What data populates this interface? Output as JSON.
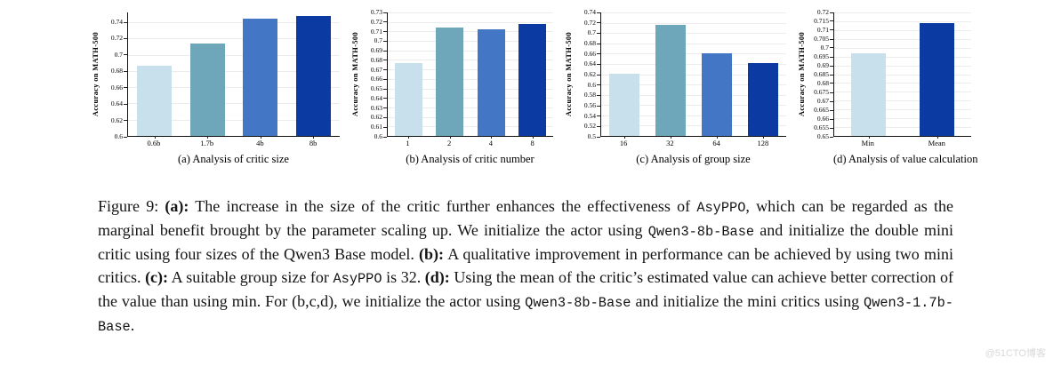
{
  "watermark": {
    "text": "@51CTO博客"
  },
  "figure": {
    "caption_segments": [
      {
        "text": "Figure 9: ",
        "style": "n"
      },
      {
        "text": "(a):",
        "style": "b"
      },
      {
        "text": " The increase in the size of the critic further enhances the effectiveness of ",
        "style": "n"
      },
      {
        "text": "AsyPPO",
        "style": "c"
      },
      {
        "text": ", which can be regarded as the marginal benefit brought by the parameter scaling up. We initialize the actor using ",
        "style": "n"
      },
      {
        "text": "Qwen3-8b-Base",
        "style": "c"
      },
      {
        "text": " and initialize the double mini critic using four sizes of the Qwen3 Base model. ",
        "style": "n"
      },
      {
        "text": "(b):",
        "style": "b"
      },
      {
        "text": " A qualitative improvement in performance can be achieved by using two mini critics. ",
        "style": "n"
      },
      {
        "text": "(c):",
        "style": "b"
      },
      {
        "text": " A suitable group size for ",
        "style": "n"
      },
      {
        "text": "AsyPPO",
        "style": "c"
      },
      {
        "text": " is 32. ",
        "style": "n"
      },
      {
        "text": "(d):",
        "style": "b"
      },
      {
        "text": " Using the mean of the critic’s estimated value can achieve better correction of the value than using min. For (b,c,d), we initialize the actor using ",
        "style": "n"
      },
      {
        "text": "Qwen3-8b-Base",
        "style": "c"
      },
      {
        "text": " and initialize the mini critics using ",
        "style": "n"
      },
      {
        "text": "Qwen3-1.7b-Base",
        "style": "c"
      },
      {
        "text": ".",
        "style": "n"
      }
    ]
  },
  "chart_data": [
    {
      "type": "bar",
      "key": "a",
      "title": "(a) Analysis of critic size",
      "ylabel": "Accuracy on MATH-500",
      "categories": [
        "0.6b",
        "1.7b",
        "4b",
        "8b"
      ],
      "values": [
        0.686,
        0.714,
        0.744,
        0.748
      ],
      "ylim": [
        0.6,
        0.752
      ],
      "yticks": [
        0.6,
        0.62,
        0.64,
        0.66,
        0.68,
        0.7,
        0.72,
        0.74
      ],
      "bar_colors": [
        "#c7e0ec",
        "#6fa7ba",
        "#4376c4",
        "#0c3aa3"
      ],
      "bar_fraction": 0.66,
      "grid": true,
      "legend": null
    },
    {
      "type": "bar",
      "key": "b",
      "title": "(b) Analysis of critic number",
      "ylabel": "Accuracy on MATH-500",
      "categories": [
        "1",
        "2",
        "4",
        "8"
      ],
      "values": [
        0.677,
        0.714,
        0.712,
        0.718
      ],
      "ylim": [
        0.6,
        0.73
      ],
      "yticks": [
        0.6,
        0.61,
        0.62,
        0.63,
        0.64,
        0.65,
        0.66,
        0.67,
        0.68,
        0.69,
        0.7,
        0.71,
        0.72,
        0.73
      ],
      "bar_colors": [
        "#c7e0ec",
        "#6fa7ba",
        "#4376c4",
        "#0c3aa3"
      ],
      "bar_fraction": 0.66,
      "grid": true,
      "legend": null
    },
    {
      "type": "bar",
      "key": "c",
      "title": "(c) Analysis of group size",
      "ylabel": "Accuracy on MATH-500",
      "categories": [
        "16",
        "32",
        "64",
        "128"
      ],
      "values": [
        0.621,
        0.716,
        0.661,
        0.641
      ],
      "ylim": [
        0.5,
        0.74
      ],
      "yticks": [
        0.5,
        0.52,
        0.54,
        0.56,
        0.58,
        0.6,
        0.62,
        0.64,
        0.66,
        0.68,
        0.7,
        0.72,
        0.74
      ],
      "bar_colors": [
        "#c7e0ec",
        "#6fa7ba",
        "#4376c4",
        "#0c3aa3"
      ],
      "bar_fraction": 0.66,
      "grid": true,
      "legend": null
    },
    {
      "type": "bar",
      "key": "d",
      "title": "(d) Analysis of value calculation",
      "ylabel": "Accuracy on MATH-500",
      "categories": [
        "Min",
        "Mean"
      ],
      "values": [
        0.697,
        0.714
      ],
      "ylim": [
        0.65,
        0.72
      ],
      "yticks": [
        0.65,
        0.655,
        0.66,
        0.665,
        0.67,
        0.675,
        0.68,
        0.685,
        0.69,
        0.695,
        0.7,
        0.705,
        0.71,
        0.715,
        0.72
      ],
      "bar_colors": [
        "#c7e0ec",
        "#0c3aa3"
      ],
      "bar_fraction": 0.5,
      "grid": true,
      "legend": null
    }
  ]
}
